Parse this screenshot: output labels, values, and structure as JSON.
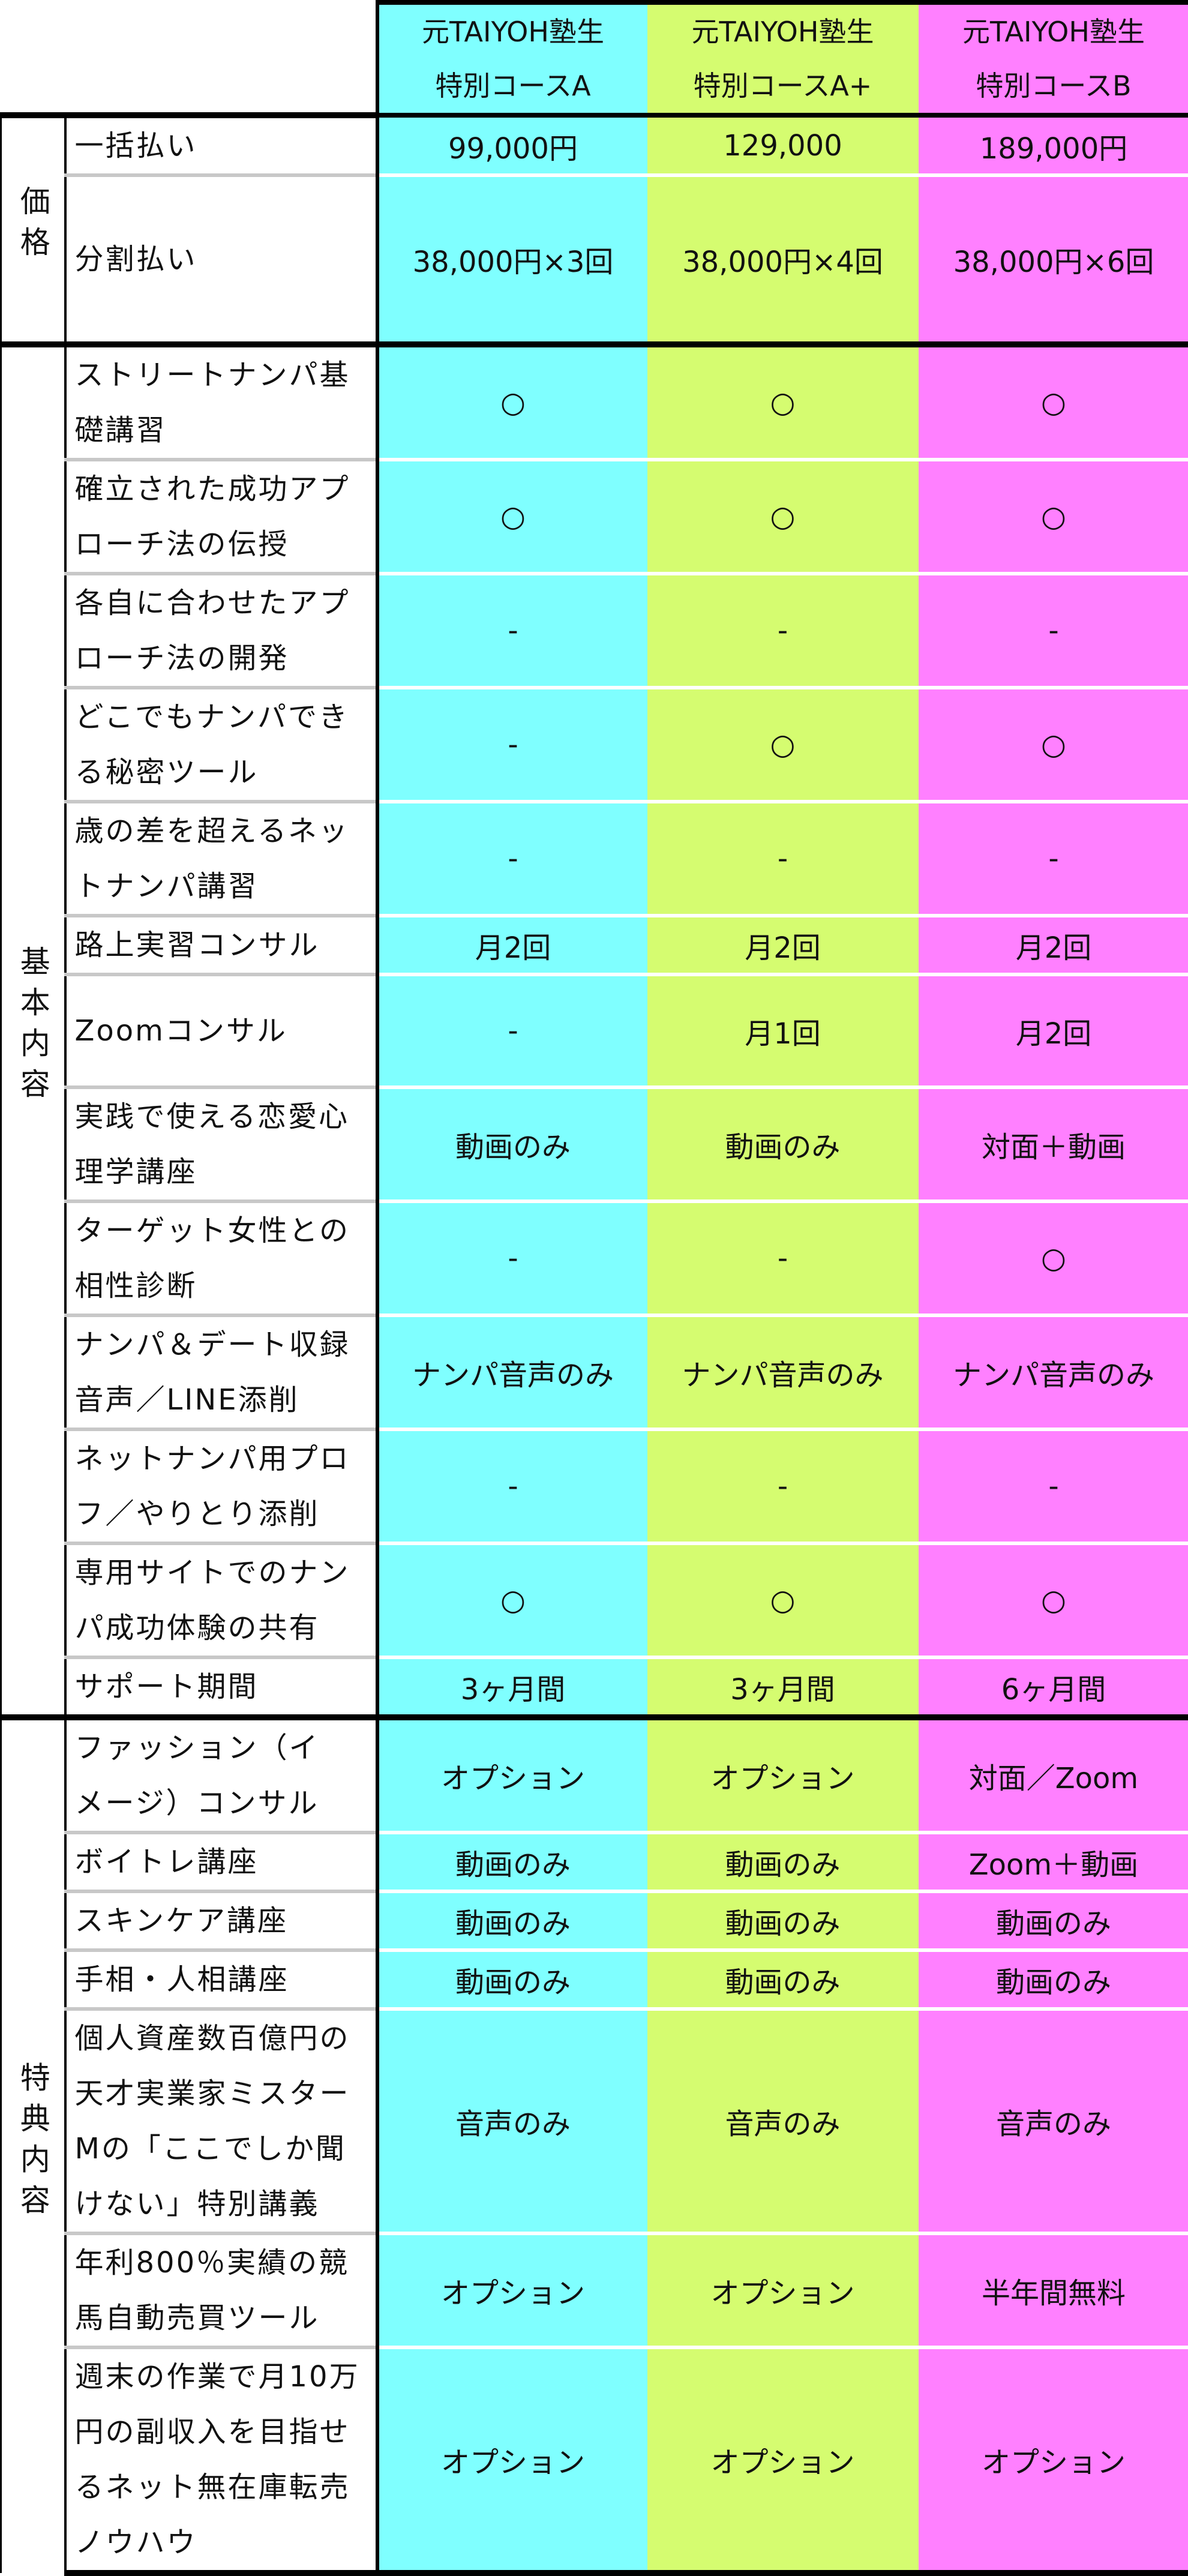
{
  "columns": [
    {
      "name": "元TAIYOH塾生\n特別コースA",
      "color": "#7fffff"
    },
    {
      "name": "元TAIYOH塾生\n特別コースA+",
      "color": "#d5fc70"
    },
    {
      "name": "元TAIYOH塾生\n特別コースB",
      "color": "#ff80ff"
    }
  ],
  "sections": [
    {
      "label": "価格",
      "rows": [
        {
          "label": "一括払い",
          "values": [
            "99,000円",
            "129,000",
            "189,000円"
          ]
        },
        {
          "label": "分割払い",
          "values": [
            "38,000円×3回",
            "38,000円×4回",
            "38,000円×6回"
          ]
        }
      ]
    },
    {
      "label": "基本内容",
      "rows": [
        {
          "label": "ストリートナンパ基\n礎講習",
          "values": [
            "○",
            "○",
            "○"
          ]
        },
        {
          "label": "確立された成功アプ\nローチ法の伝授",
          "values": [
            "○",
            "○",
            "○"
          ]
        },
        {
          "label": "各自に合わせたアプ\nローチ法の開発",
          "values": [
            "-",
            "-",
            "-"
          ]
        },
        {
          "label": "どこでもナンパでき\nる秘密ツール",
          "values": [
            "-",
            "○",
            "○"
          ]
        },
        {
          "label": "歳の差を超えるネッ\nトナンパ講習",
          "values": [
            "-",
            "-",
            "-"
          ]
        },
        {
          "label": "路上実習コンサル",
          "values": [
            "月2回",
            "月2回",
            "月2回"
          ]
        },
        {
          "label": "Zoomコンサル",
          "values": [
            "-",
            "月1回",
            "月2回"
          ]
        },
        {
          "label": "実践で使える恋愛心\n理学講座",
          "values": [
            "動画のみ",
            "動画のみ",
            "対面＋動画"
          ]
        },
        {
          "label": "ターゲット女性との\n相性診断",
          "values": [
            "-",
            "-",
            "○"
          ]
        },
        {
          "label": "ナンパ＆デート収録\n音声／LINE添削",
          "values": [
            "ナンパ音声のみ",
            "ナンパ音声のみ",
            "ナンパ音声のみ"
          ]
        },
        {
          "label": "ネットナンパ用プロ\nフ／やりとり添削",
          "values": [
            "-",
            "-",
            "-"
          ]
        },
        {
          "label": "専用サイトでのナン\nパ成功体験の共有",
          "values": [
            "○",
            "○",
            "○"
          ]
        },
        {
          "label": "サポート期間",
          "values": [
            "3ヶ月間",
            "3ヶ月間",
            "6ヶ月間"
          ]
        }
      ]
    },
    {
      "label": "特典内容",
      "rows": [
        {
          "label": "ファッション（イ\nメージ）コンサル",
          "values": [
            "オプション",
            "オプション",
            "対面／Zoom"
          ]
        },
        {
          "label": "ボイトレ講座",
          "values": [
            "動画のみ",
            "動画のみ",
            "Zoom＋動画"
          ]
        },
        {
          "label": "スキンケア講座",
          "values": [
            "動画のみ",
            "動画のみ",
            "動画のみ"
          ]
        },
        {
          "label": "手相・人相講座",
          "values": [
            "動画のみ",
            "動画のみ",
            "動画のみ"
          ]
        },
        {
          "label": "個人資産数百億円の\n天才実業家ミスター\nMの「ここでしか聞\nけない」特別講義",
          "values": [
            "音声のみ",
            "音声のみ",
            "音声のみ"
          ]
        },
        {
          "label": "年利800％実績の競\n馬自動売買ツール",
          "values": [
            "オプション",
            "オプション",
            "半年間無料"
          ]
        },
        {
          "label": "週末の作業で月10万\n円の副収入を目指せ\nるネット無在庫転売\nノウハウ",
          "values": [
            "オプション",
            "オプション",
            "オプション"
          ]
        }
      ]
    }
  ]
}
